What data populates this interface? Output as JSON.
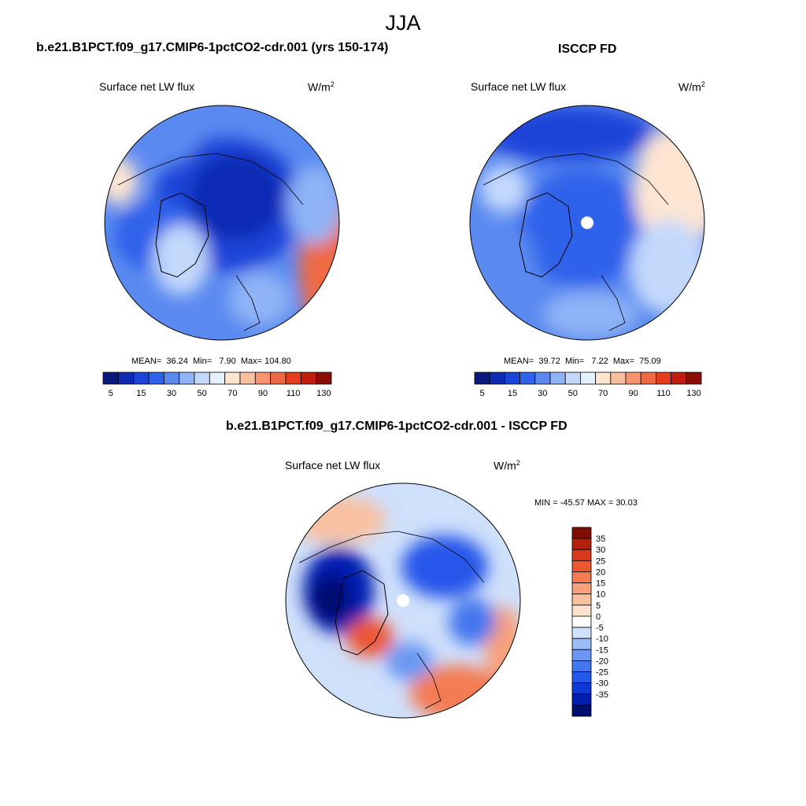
{
  "page_title": "JJA",
  "colors": {
    "abs_levels": [
      "#0a1a7a",
      "#0f2bb4",
      "#1a45d8",
      "#2f62ea",
      "#5a8af0",
      "#8fb3f6",
      "#c3d8fb",
      "#e6f1ff",
      "#fde5d2",
      "#f9c0a0",
      "#f5946f",
      "#ef6a44",
      "#e33d1e",
      "#bf1d0e",
      "#8b0d06"
    ],
    "diff_levels": [
      "#000e6e",
      "#001fb0",
      "#0d3ad6",
      "#2557ea",
      "#4477ee",
      "#6b97f2",
      "#9bbcf7",
      "#cfe0fb",
      "#ffffff",
      "#fde3cf",
      "#f9c0a0",
      "#f7a07c",
      "#f47b53",
      "#ed5730",
      "#d9381a",
      "#b3200b",
      "#7f0d04"
    ]
  },
  "chart_data": [
    {
      "type": "heatmap",
      "panel_title": "b.e21.B1PCT.f09_g17.CMIP6-1pctCO2-cdr.001 (yrs 150-174)",
      "left_label": "Surface net LW flux",
      "right_label": "W/m",
      "units_sup": "2",
      "stats": {
        "mean_label": "MEAN=",
        "mean": "36.24",
        "min_label": "Min=",
        "min": "7.90",
        "max_label": "Max=",
        "max": "104.80"
      },
      "colorbar_ticks": [
        "5",
        "15",
        "30",
        "50",
        "70",
        "90",
        "110",
        "130"
      ],
      "levels": [
        5,
        10,
        15,
        20,
        30,
        40,
        50,
        60,
        70,
        80,
        90,
        100,
        110,
        120,
        130
      ],
      "field_blobs": [
        {
          "region": "outer ring",
          "value": 40
        },
        {
          "region": "central Arctic Ocean",
          "value": 15
        },
        {
          "region": "Canadian Archipelago",
          "value": 20
        },
        {
          "region": "Greenland",
          "value": 55
        },
        {
          "region": "North Atlantic east edge",
          "value": 100
        },
        {
          "region": "Siberia",
          "value": 30
        }
      ]
    },
    {
      "type": "heatmap",
      "panel_title": "ISCCP FD",
      "left_label": "Surface net LW flux",
      "right_label": "W/m",
      "units_sup": "2",
      "stats": {
        "mean_label": "MEAN=",
        "mean": "39.72",
        "min_label": "Min=",
        "min": "7.22",
        "max_label": "Max=",
        "max": "75.09"
      },
      "colorbar_ticks": [
        "5",
        "15",
        "30",
        "50",
        "70",
        "90",
        "110",
        "130"
      ],
      "levels": [
        5,
        10,
        15,
        20,
        30,
        40,
        50,
        60,
        70,
        80,
        90,
        100,
        110,
        120,
        130
      ],
      "field_blobs": [
        {
          "region": "outer ring",
          "value": 45
        },
        {
          "region": "central Arctic Ocean",
          "value": 30
        },
        {
          "region": "Siberia north",
          "value": 15
        },
        {
          "region": "Canadian Archipelago",
          "value": 25
        },
        {
          "region": "Bering / Alaska",
          "value": 65
        },
        {
          "region": "Greenland",
          "value": 30
        }
      ]
    },
    {
      "type": "heatmap",
      "panel_title": "b.e21.B1PCT.f09_g17.CMIP6-1pctCO2-cdr.001 - ISCCP FD",
      "left_label": "Surface net LW flux",
      "right_label": "W/m",
      "units_sup": "2",
      "minmax": {
        "text": "MIN = -45.57 MAX =  30.03",
        "min": -45.57,
        "max": 30.03
      },
      "colorbar_ticks": [
        "35",
        "30",
        "25",
        "20",
        "15",
        "10",
        "5",
        "0",
        "-5",
        "-10",
        "-15",
        "-20",
        "-25",
        "-30",
        "-35"
      ],
      "levels": [
        -40,
        -35,
        -30,
        -25,
        -20,
        -15,
        -10,
        -5,
        0,
        5,
        10,
        15,
        20,
        25,
        30,
        35,
        40
      ],
      "field_blobs": [
        {
          "region": "outer ring",
          "value": 5
        },
        {
          "region": "Greenland",
          "value": 20
        },
        {
          "region": "Canadian Archipelago",
          "value": -30
        },
        {
          "region": "Siberia",
          "value": -15
        },
        {
          "region": "North Atlantic south",
          "value": 25
        },
        {
          "region": "Alaska / Bering",
          "value": 10
        }
      ]
    }
  ]
}
